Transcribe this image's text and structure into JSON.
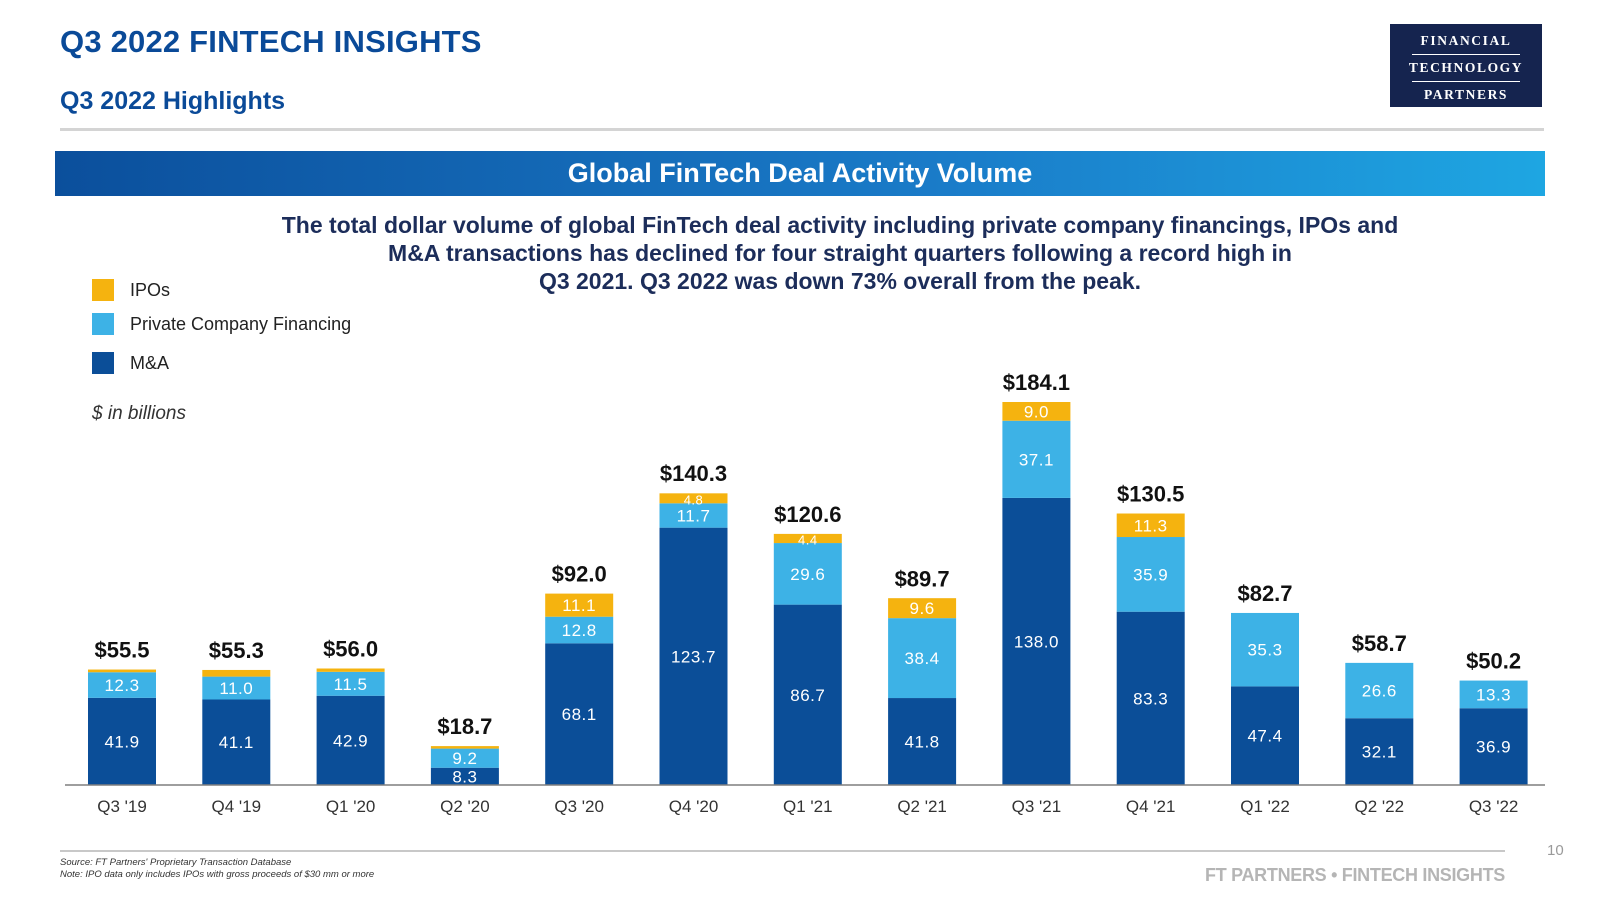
{
  "header": {
    "title": "Q3 2022 FINTECH INSIGHTS",
    "subtitle": "Q3 2022 Highlights",
    "logo": {
      "line1": "FINANCIAL",
      "line2": "TECHNOLOGY",
      "line3": "PARTNERS"
    }
  },
  "banner": {
    "title": "Global FinTech Deal Activity Volume"
  },
  "description": {
    "line1": "The total dollar volume of global FinTech deal activity including private company financings, IPOs and",
    "line2": "M&A transactions has declined for four straight quarters following a record high in",
    "line3": "Q3 2021. Q3 2022 was down 73% overall from the peak."
  },
  "legend": {
    "items": [
      {
        "label": "IPOs",
        "color": "#f5b30f"
      },
      {
        "label": "Private Company Financing",
        "color": "#3db2e6"
      },
      {
        "label": "M&A",
        "color": "#0b4e98"
      }
    ],
    "units": "$ in billions"
  },
  "chart_data": {
    "type": "bar",
    "stacked": true,
    "categories": [
      "Q3 '19",
      "Q4 '19",
      "Q1 '20",
      "Q2 '20",
      "Q3 '20",
      "Q4 '20",
      "Q1 '21",
      "Q2 '21",
      "Q3 '21",
      "Q4 '21",
      "Q1 '22",
      "Q2 '22",
      "Q3 '22"
    ],
    "series": [
      {
        "name": "M&A",
        "color": "#0b4e98",
        "values": [
          41.9,
          41.1,
          42.9,
          8.3,
          68.1,
          123.7,
          86.7,
          41.8,
          138.0,
          83.3,
          47.4,
          32.1,
          36.9
        ],
        "labels": [
          "41.9",
          "41.1",
          "42.9",
          "8.3",
          "68.1",
          "123.7",
          "86.7",
          "41.8",
          "138.0",
          "83.3",
          "47.4",
          "32.1",
          "36.9"
        ]
      },
      {
        "name": "Private Company Financing",
        "color": "#3db2e6",
        "values": [
          12.3,
          11.0,
          11.5,
          9.2,
          12.8,
          11.7,
          29.6,
          38.4,
          37.1,
          35.9,
          35.3,
          26.6,
          13.3
        ],
        "labels": [
          "12.3",
          "11.0",
          "11.5",
          "9.2",
          "12.8",
          "11.7",
          "29.6",
          "38.4",
          "37.1",
          "35.9",
          "35.3",
          "26.6",
          "13.3"
        ]
      },
      {
        "name": "IPOs",
        "color": "#f5b30f",
        "values": [
          1.3,
          3.2,
          1.6,
          1.2,
          11.1,
          4.8,
          4.4,
          9.6,
          9.0,
          11.3,
          0.0,
          0.0,
          0.0
        ],
        "labels": [
          "",
          "",
          "",
          "",
          "11.1",
          "4.8",
          "4.4",
          "9.6",
          "9.0",
          "11.3",
          "",
          "",
          ""
        ]
      }
    ],
    "totals": [
      "$55.5",
      "$55.3",
      "$56.0",
      "$18.7",
      "$92.0",
      "$140.3",
      "$120.6",
      "$89.7",
      "$184.1",
      "$130.5",
      "$82.7",
      "$58.7",
      "$50.2"
    ],
    "total_values": [
      55.5,
      55.3,
      56.0,
      18.7,
      92.0,
      140.3,
      120.6,
      89.7,
      184.1,
      130.5,
      82.7,
      58.7,
      50.2
    ],
    "ylim": [
      0,
      184.1
    ],
    "grid": false,
    "legend_position": "top-left"
  },
  "footer": {
    "source": "Source: FT Partners' Proprietary Transaction Database",
    "note": "Note: IPO data only includes IPOs with gross proceeds of $30 mm or more",
    "brand": "FT PARTNERS • FINTECH INSIGHTS",
    "page_number": "10"
  }
}
